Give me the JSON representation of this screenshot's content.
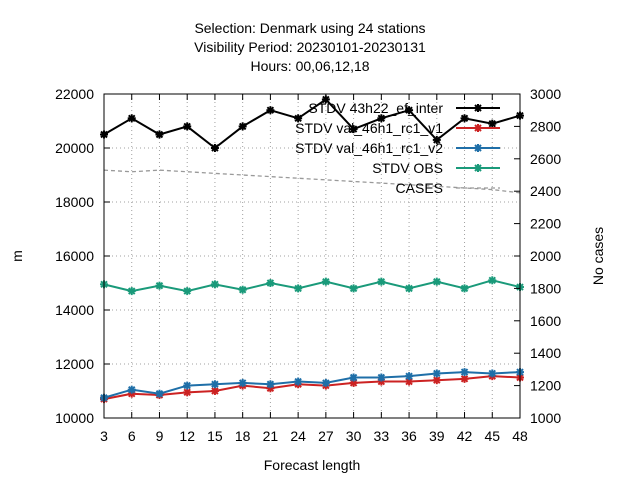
{
  "chart_data": {
    "type": "line",
    "title_lines": [
      "Selection: Denmark using    24 stations",
      "Visibility   Period: 20230101-20230131",
      "Hours:  00,06,12,18"
    ],
    "xlabel": "Forecast length",
    "ylabel": "m",
    "y2label": "No cases",
    "x": [
      3,
      6,
      9,
      12,
      15,
      18,
      21,
      24,
      27,
      30,
      33,
      36,
      39,
      42,
      45,
      48
    ],
    "xlim": [
      3,
      48
    ],
    "ylim": [
      10000,
      22000
    ],
    "y2lim": [
      1000,
      3000
    ],
    "yticks": [
      10000,
      12000,
      14000,
      16000,
      18000,
      20000,
      22000
    ],
    "y2ticks": [
      1000,
      1200,
      1400,
      1600,
      1800,
      2000,
      2200,
      2400,
      2600,
      2800,
      3000
    ],
    "grid": true,
    "legend_position": "top-right",
    "series": [
      {
        "name": "STDV 43h22_ef_inter",
        "color": "#000000",
        "marker": "star",
        "axis": "left",
        "values": [
          20500,
          21100,
          20500,
          20800,
          20000,
          20800,
          21400,
          21100,
          21800,
          20700,
          21100,
          21400,
          20300,
          21100,
          20900,
          21200
        ]
      },
      {
        "name": "STDV val_46h1_rc1_v1",
        "color": "#cc2222",
        "marker": "star",
        "axis": "left",
        "values": [
          10700,
          10900,
          10850,
          10950,
          11000,
          11200,
          11100,
          11250,
          11200,
          11300,
          11350,
          11350,
          11400,
          11450,
          11550,
          11500
        ]
      },
      {
        "name": "STDV val_46h1_rc1_v2",
        "color": "#1f6fa8",
        "marker": "star",
        "axis": "left",
        "values": [
          10750,
          11050,
          10900,
          11200,
          11250,
          11300,
          11250,
          11350,
          11300,
          11500,
          11500,
          11550,
          11650,
          11700,
          11650,
          11700
        ]
      },
      {
        "name": "STDV OBS",
        "color": "#1a9a7a",
        "marker": "star",
        "axis": "left",
        "values": [
          14950,
          14700,
          14900,
          14700,
          14950,
          14750,
          15000,
          14800,
          15050,
          14800,
          15050,
          14800,
          15050,
          14800,
          15100,
          14850
        ]
      },
      {
        "name": "CASES",
        "color": "#999999",
        "marker": "none",
        "dashed": true,
        "axis": "right",
        "values": [
          2530,
          2520,
          2530,
          2520,
          2510,
          2500,
          2490,
          2480,
          2470,
          2460,
          2450,
          2440,
          2430,
          2420,
          2410,
          2390
        ]
      }
    ]
  }
}
